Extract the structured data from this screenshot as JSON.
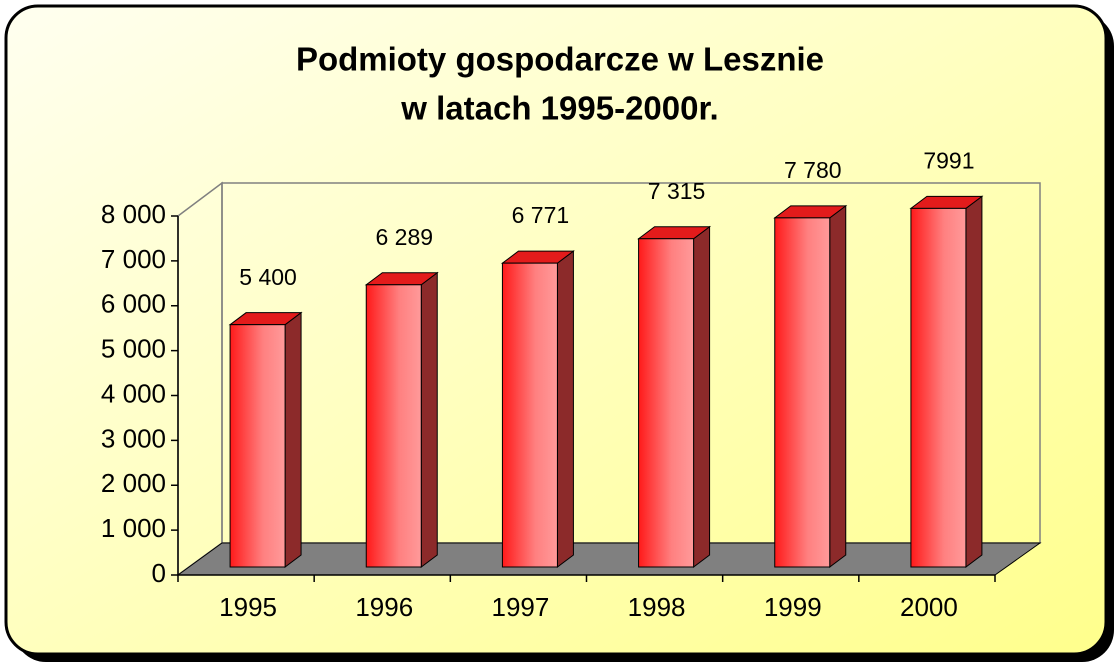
{
  "chart_data": {
    "type": "bar3d",
    "title": [
      "Podmioty gospodarcze w Lesznie",
      "w latach 1995-2000r."
    ],
    "categories": [
      "1995",
      "1996",
      "1997",
      "1998",
      "1999",
      "2000"
    ],
    "values": [
      5400,
      6289,
      6771,
      7315,
      7780,
      7991
    ],
    "value_labels": [
      "5 400",
      "6 289",
      "6 771",
      "7 315",
      "7 780",
      "7991"
    ],
    "color": "#ff2020",
    "ylim": [
      0,
      8000
    ],
    "yticks": [
      0,
      {
        "value": 1000,
        "label": "1 000"
      },
      {
        "value": 2000,
        "label": "2 000"
      },
      {
        "value": 3000,
        "label": "3 000"
      },
      {
        "value": 4000,
        "label": "4 000"
      },
      {
        "value": 5000,
        "label": "5 000"
      },
      {
        "value": 6000,
        "label": "6 000"
      },
      {
        "value": 7000,
        "label": "7 000"
      },
      {
        "value": 8000,
        "label": "8 000"
      }
    ]
  }
}
